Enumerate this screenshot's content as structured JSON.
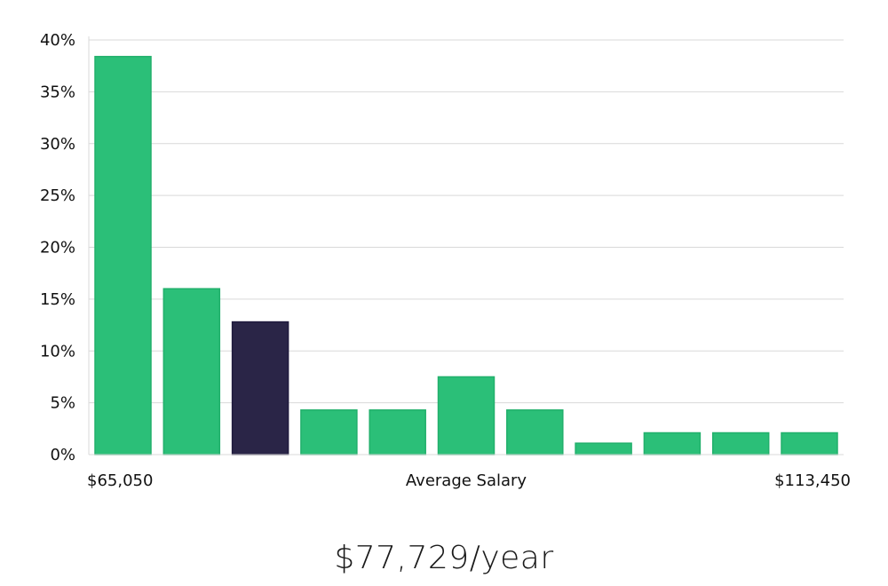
{
  "chart_data": {
    "type": "bar",
    "xlabel": "Average Salary",
    "x_range_labels": [
      "$65,050",
      "$113,450"
    ],
    "ylim": [
      0,
      40
    ],
    "y_ticks": [
      0,
      5,
      10,
      15,
      20,
      25,
      30,
      35,
      40
    ],
    "y_tick_suffix": "%",
    "grid": true,
    "values": [
      38.4,
      16.0,
      12.8,
      4.3,
      4.3,
      7.5,
      4.3,
      1.1,
      2.1,
      2.1,
      2.1
    ],
    "highlight_index": 2,
    "colors": {
      "bar": "#2bbf78",
      "bar_border": "#22b06c",
      "highlight": "#2a2547",
      "grid": "#d9d9d9"
    }
  },
  "salary": "$77,729/year"
}
